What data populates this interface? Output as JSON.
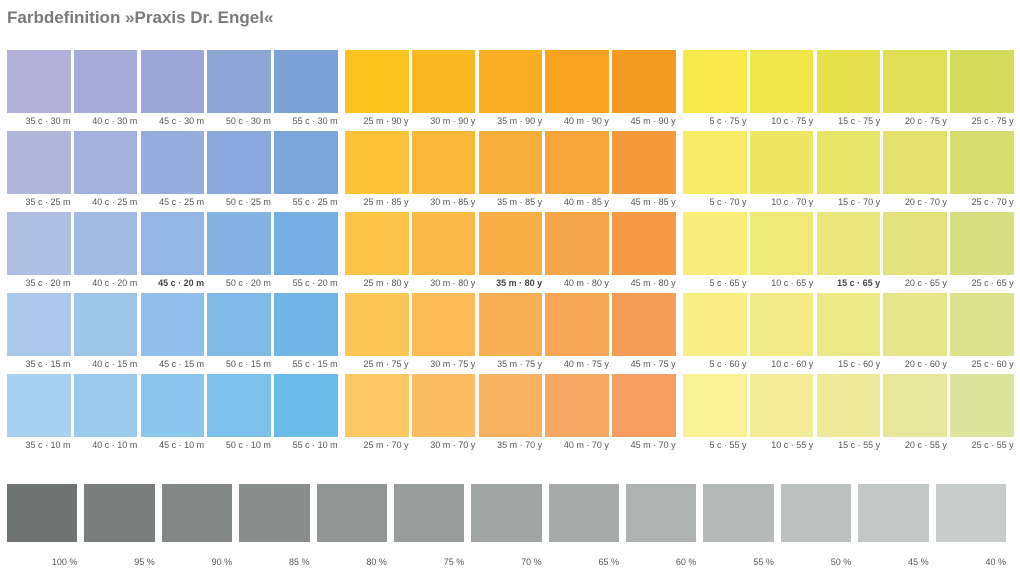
{
  "title": "Farbdefinition »Praxis Dr. Engel«",
  "groups": [
    {
      "rows": [
        [
          {
            "label": "35 c · 30 m",
            "color": "#b3b0d9"
          },
          {
            "label": "40 c · 30 m",
            "color": "#a5acd9"
          },
          {
            "label": "45 c · 30 m",
            "color": "#9aa7d8"
          },
          {
            "label": "50 c · 30 m",
            "color": "#8ea5d8"
          },
          {
            "label": "55 c · 30 m",
            "color": "#7ea1d6"
          }
        ],
        [
          {
            "label": "35 c · 25 m",
            "color": "#b1b6dc"
          },
          {
            "label": "40 c · 25 m",
            "color": "#a3b1df"
          },
          {
            "label": "45 c · 25 m",
            "color": "#97addf"
          },
          {
            "label": "50 c · 25 m",
            "color": "#8aaadd"
          },
          {
            "label": "55 c · 25 m",
            "color": "#7aa6db"
          }
        ],
        [
          {
            "label": "35 c · 20 m",
            "color": "#adbfe2"
          },
          {
            "label": "40 c · 20 m",
            "color": "#a1bbe5"
          },
          {
            "label": "45 c · 20 m",
            "color": "#93b6e5",
            "bold": true
          },
          {
            "label": "50 c · 20 m",
            "color": "#85b1e3"
          },
          {
            "label": "55 c · 20 m",
            "color": "#74aee2"
          }
        ],
        [
          {
            "label": "35 c · 15 m",
            "color": "#aac8ea"
          },
          {
            "label": "40 c · 15 m",
            "color": "#9ec4ea"
          },
          {
            "label": "45 c · 15 m",
            "color": "#8fbfea"
          },
          {
            "label": "50 c · 15 m",
            "color": "#80bbe8"
          },
          {
            "label": "55 c · 15 m",
            "color": "#6fb6e6"
          }
        ],
        [
          {
            "label": "35 c · 10 m",
            "color": "#a8d0f0"
          },
          {
            "label": "40 c · 10 m",
            "color": "#9acbef"
          },
          {
            "label": "45 c · 10 m",
            "color": "#8ac6ee"
          },
          {
            "label": "50 c · 10 m",
            "color": "#7ac2ed"
          },
          {
            "label": "55 c · 10 m",
            "color": "#6bbbe9"
          }
        ]
      ]
    },
    {
      "rows": [
        [
          {
            "label": "25 m · 90 y",
            "color": "#fcc21d"
          },
          {
            "label": "30 m · 90 y",
            "color": "#fab822"
          },
          {
            "label": "35 m · 90 y",
            "color": "#f8ad23"
          },
          {
            "label": "40 m · 90 y",
            "color": "#f6a322"
          },
          {
            "label": "45 m · 90 y",
            "color": "#f49a21"
          }
        ],
        [
          {
            "label": "25 m · 85 y",
            "color": "#fcc23a"
          },
          {
            "label": "30 m · 85 y",
            "color": "#fab83a"
          },
          {
            "label": "35 m · 85 y",
            "color": "#f8ae3a"
          },
          {
            "label": "40 m · 85 y",
            "color": "#f6a43b"
          },
          {
            "label": "45 m · 85 y",
            "color": "#f49a3a"
          }
        ],
        [
          {
            "label": "25 m · 80 y",
            "color": "#fcc447"
          },
          {
            "label": "30 m · 80 y",
            "color": "#fbb947"
          },
          {
            "label": "35 m · 80 y",
            "color": "#f9af48",
            "bold": true
          },
          {
            "label": "40 m · 80 y",
            "color": "#f7a549"
          },
          {
            "label": "45 m · 80 y",
            "color": "#f59b48"
          }
        ],
        [
          {
            "label": "25 m · 75 y",
            "color": "#fdc555"
          },
          {
            "label": "30 m · 75 y",
            "color": "#fbba55"
          },
          {
            "label": "35 m · 75 y",
            "color": "#f9b055"
          },
          {
            "label": "40 m · 75 y",
            "color": "#f8a655"
          },
          {
            "label": "45 m · 75 y",
            "color": "#f69d55"
          }
        ],
        [
          {
            "label": "25 m · 70 y",
            "color": "#fdc762"
          },
          {
            "label": "30 m · 70 y",
            "color": "#fbbc62"
          },
          {
            "label": "35 m · 70 y",
            "color": "#f9b262"
          },
          {
            "label": "40 m · 70 y",
            "color": "#f8a862"
          },
          {
            "label": "45 m · 70 y",
            "color": "#f69e62"
          }
        ]
      ]
    },
    {
      "rows": [
        [
          {
            "label": "5 c · 75 y",
            "color": "#f9e84a"
          },
          {
            "label": "10 c · 75 y",
            "color": "#f0e54a"
          },
          {
            "label": "15 c · 75 y",
            "color": "#e6e24c"
          },
          {
            "label": "20 c · 75 y",
            "color": "#dfdf55"
          },
          {
            "label": "25 c · 75 y",
            "color": "#d4db5a"
          }
        ],
        [
          {
            "label": "5 c · 70 y",
            "color": "#f9ea65"
          },
          {
            "label": "10 c · 70 y",
            "color": "#f0e665"
          },
          {
            "label": "15 c · 70 y",
            "color": "#e8e468"
          },
          {
            "label": "20 c · 70 y",
            "color": "#e1e16b"
          },
          {
            "label": "25 c · 70 y",
            "color": "#d6dd6e"
          }
        ],
        [
          {
            "label": "5 c · 65 y",
            "color": "#f9ec78"
          },
          {
            "label": "10 c · 65 y",
            "color": "#f1e87a"
          },
          {
            "label": "15 c · 65 y",
            "color": "#eae67b",
            "bold": true
          },
          {
            "label": "20 c · 65 y",
            "color": "#e3e37d"
          },
          {
            "label": "25 c · 65 y",
            "color": "#d8df80"
          }
        ],
        [
          {
            "label": "5 c · 60 y",
            "color": "#faee86"
          },
          {
            "label": "10 c · 60 y",
            "color": "#f3ea87"
          },
          {
            "label": "15 c · 60 y",
            "color": "#ebe888"
          },
          {
            "label": "20 c · 60 y",
            "color": "#e5e58a"
          },
          {
            "label": "25 c · 60 y",
            "color": "#dbe18d"
          }
        ],
        [
          {
            "label": "5 c · 55 y",
            "color": "#faf096"
          },
          {
            "label": "10 c · 55 y",
            "color": "#f4ec97"
          },
          {
            "label": "15 c · 55 y",
            "color": "#ede998"
          },
          {
            "label": "20 c · 55 y",
            "color": "#e7e799"
          },
          {
            "label": "25 c · 55 y",
            "color": "#dde49b"
          }
        ]
      ]
    }
  ],
  "grays": [
    {
      "label": "100 %",
      "color": "#6f7473"
    },
    {
      "label": "95 %",
      "color": "#7a7f7e"
    },
    {
      "label": "90 %",
      "color": "#828786"
    },
    {
      "label": "85 %",
      "color": "#898e8d"
    },
    {
      "label": "80 %",
      "color": "#919695"
    },
    {
      "label": "75 %",
      "color": "#989d9c"
    },
    {
      "label": "70 %",
      "color": "#a0a4a3"
    },
    {
      "label": "65 %",
      "color": "#a7abaa"
    },
    {
      "label": "60 %",
      "color": "#aeb2b1"
    },
    {
      "label": "55 %",
      "color": "#b5b9b8"
    },
    {
      "label": "50 %",
      "color": "#bcc0bf"
    },
    {
      "label": "45 %",
      "color": "#c3c7c6"
    },
    {
      "label": "40 %",
      "color": "#c8cccb"
    }
  ]
}
